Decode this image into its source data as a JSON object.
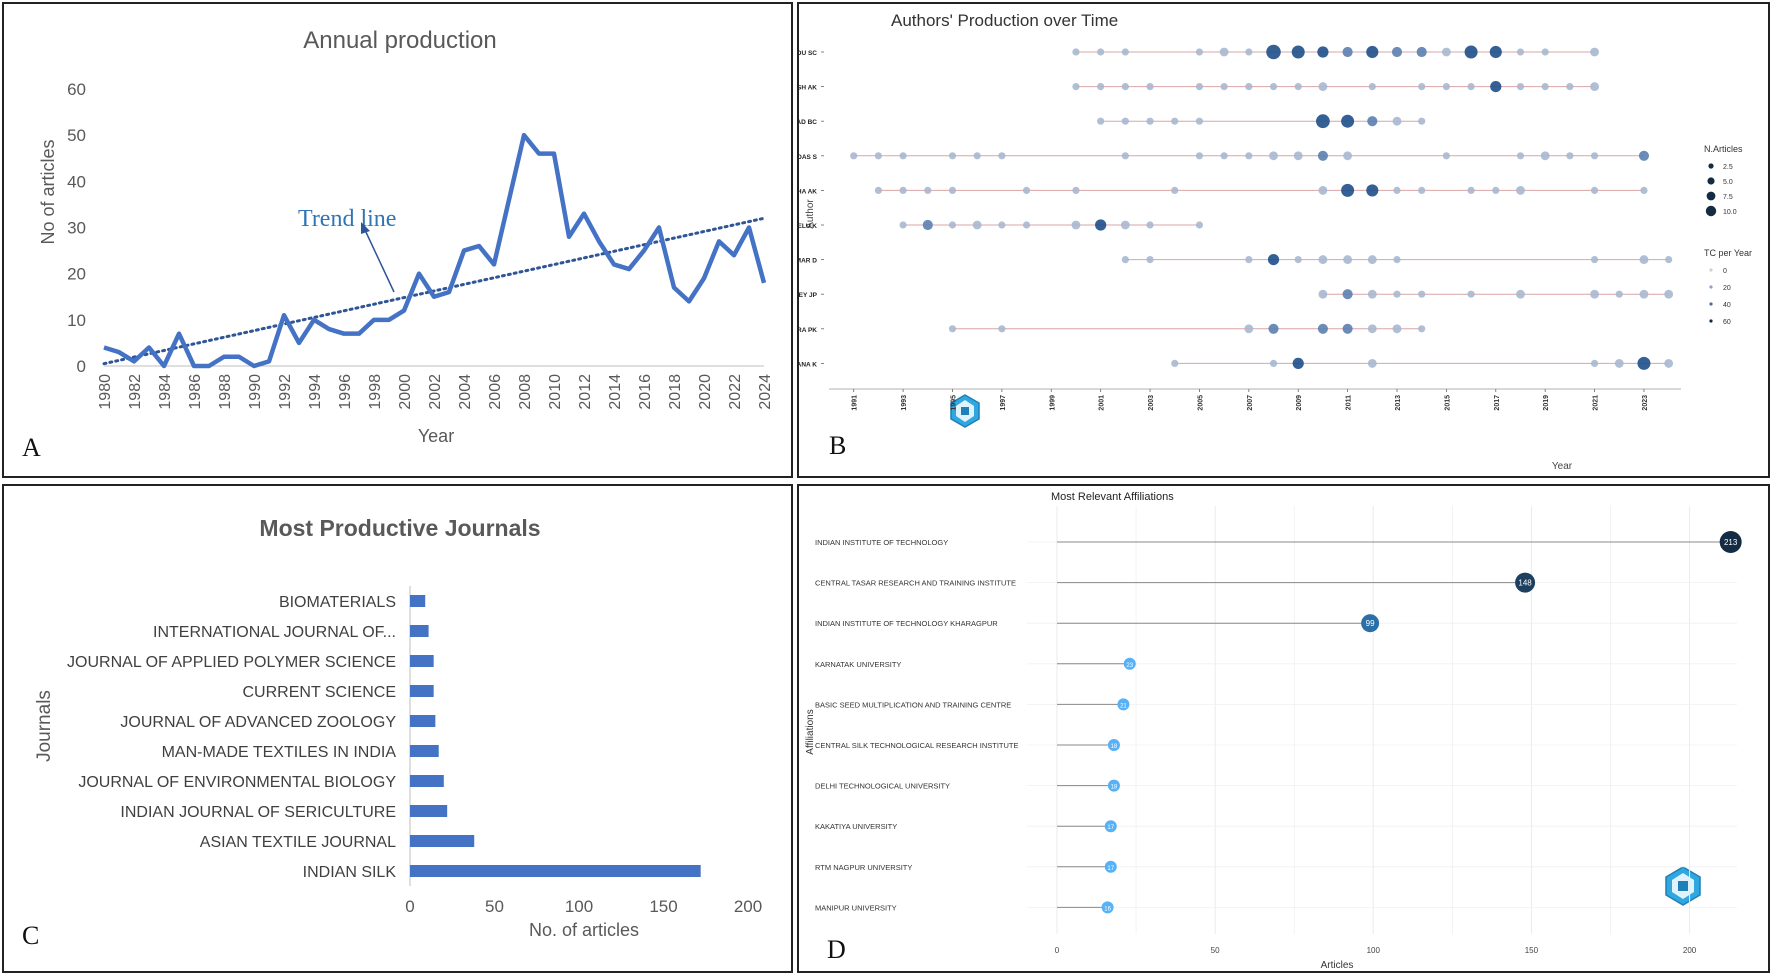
{
  "panel_letters": {
    "a": "A",
    "b": "B",
    "c": "C",
    "d": "D"
  },
  "colors": {
    "line_blue": "#4472C4",
    "dark_navy": "#132B43",
    "light_dot": "#56B1F7",
    "seg_red": "#D9A5A5"
  },
  "chart_data": [
    {
      "id": "annual",
      "type": "line",
      "title": "Annual production",
      "xlabel": "Year",
      "ylabel": "No of articles",
      "ylim": [
        0,
        60
      ],
      "yticks": [
        "0",
        "10",
        "20",
        "30",
        "40",
        "50",
        "60"
      ],
      "xticks": [
        "1980",
        "1982",
        "1984",
        "1986",
        "1988",
        "1990",
        "1992",
        "1994",
        "1996",
        "1998",
        "2000",
        "2002",
        "2004",
        "2006",
        "2008",
        "2010",
        "2012",
        "2014",
        "2016",
        "2018",
        "2020",
        "2022",
        "2024"
      ],
      "x": [
        1980,
        1981,
        1982,
        1983,
        1984,
        1985,
        1986,
        1987,
        1988,
        1989,
        1990,
        1991,
        1992,
        1993,
        1994,
        1995,
        1996,
        1997,
        1998,
        1999,
        2000,
        2001,
        2002,
        2003,
        2004,
        2005,
        2006,
        2007,
        2008,
        2009,
        2010,
        2011,
        2012,
        2013,
        2014,
        2015,
        2016,
        2017,
        2018,
        2019,
        2020,
        2021,
        2022,
        2023,
        2024
      ],
      "values": [
        4,
        3,
        1,
        4,
        0,
        7,
        0,
        0,
        2,
        2,
        0,
        1,
        11,
        5,
        10,
        8,
        7,
        7,
        10,
        10,
        12,
        20,
        15,
        16,
        25,
        26,
        22,
        36,
        50,
        46,
        46,
        28,
        33,
        27,
        22,
        21,
        25,
        30,
        17,
        14,
        19,
        27,
        24,
        30,
        18
      ],
      "trend": {
        "label": "Trend line",
        "start": [
          1980,
          0.5
        ],
        "end": [
          2024,
          32
        ]
      }
    },
    {
      "id": "authors",
      "type": "scatter",
      "title": "Authors' Production over Time",
      "xlabel": "Year",
      "ylabel": "Author",
      "xticks": [
        "1991",
        "1993",
        "1995",
        "1997",
        "1999",
        "2001",
        "2003",
        "2005",
        "2007",
        "2009",
        "2011",
        "2013",
        "2015",
        "2017",
        "2019",
        "2021",
        "2023"
      ],
      "authors": [
        "KUNDU SC",
        "GHOSH AK",
        "PRASAD BC",
        "DAS S",
        "SINHA AK",
        "THANGAVELU K",
        "KUMAR D",
        "PANDEY JP",
        "MISHRA PK",
        "SATHYANARAYANA K"
      ],
      "series": [
        {
          "name": "KUNDU SC",
          "span": [
            2000,
            2021
          ],
          "points": [
            [
              2000,
              1
            ],
            [
              2001,
              1
            ],
            [
              2002,
              1
            ],
            [
              2005,
              1
            ],
            [
              2006,
              2
            ],
            [
              2007,
              1
            ],
            [
              2008,
              8
            ],
            [
              2009,
              6
            ],
            [
              2010,
              4
            ],
            [
              2011,
              3
            ],
            [
              2012,
              5
            ],
            [
              2013,
              3
            ],
            [
              2014,
              3
            ],
            [
              2015,
              2
            ],
            [
              2016,
              6
            ],
            [
              2017,
              5
            ],
            [
              2018,
              1
            ],
            [
              2019,
              1
            ],
            [
              2021,
              2
            ]
          ]
        },
        {
          "name": "GHOSH AK",
          "span": [
            2000,
            2021
          ],
          "points": [
            [
              2000,
              1
            ],
            [
              2001,
              1
            ],
            [
              2002,
              1
            ],
            [
              2003,
              1
            ],
            [
              2005,
              1
            ],
            [
              2006,
              1
            ],
            [
              2007,
              1
            ],
            [
              2008,
              1
            ],
            [
              2009,
              1
            ],
            [
              2010,
              2
            ],
            [
              2012,
              1
            ],
            [
              2014,
              1
            ],
            [
              2015,
              1
            ],
            [
              2016,
              1
            ],
            [
              2017,
              4
            ],
            [
              2018,
              1
            ],
            [
              2019,
              1
            ],
            [
              2020,
              1
            ],
            [
              2021,
              2
            ]
          ]
        },
        {
          "name": "PRASAD BC",
          "span": [
            2001,
            2014
          ],
          "points": [
            [
              2001,
              1
            ],
            [
              2002,
              1
            ],
            [
              2003,
              1
            ],
            [
              2004,
              1
            ],
            [
              2005,
              1
            ],
            [
              2010,
              7
            ],
            [
              2011,
              6
            ],
            [
              2012,
              3
            ],
            [
              2013,
              2
            ],
            [
              2014,
              1
            ]
          ]
        },
        {
          "name": "DAS S",
          "span": [
            1991,
            2023
          ],
          "points": [
            [
              1991,
              1
            ],
            [
              1992,
              1
            ],
            [
              1993,
              1
            ],
            [
              1995,
              1
            ],
            [
              1996,
              1
            ],
            [
              1997,
              1
            ],
            [
              2002,
              1
            ],
            [
              2005,
              1
            ],
            [
              2006,
              1
            ],
            [
              2007,
              1
            ],
            [
              2008,
              2
            ],
            [
              2009,
              2
            ],
            [
              2010,
              3
            ],
            [
              2011,
              2
            ],
            [
              2015,
              1
            ],
            [
              2018,
              1
            ],
            [
              2019,
              2
            ],
            [
              2020,
              1
            ],
            [
              2021,
              1
            ],
            [
              2023,
              3
            ]
          ]
        },
        {
          "name": "SINHA AK",
          "span": [
            1992,
            2023
          ],
          "points": [
            [
              1992,
              1
            ],
            [
              1993,
              1
            ],
            [
              1994,
              1
            ],
            [
              1995,
              1
            ],
            [
              1998,
              1
            ],
            [
              2000,
              1
            ],
            [
              2004,
              1
            ],
            [
              2010,
              2
            ],
            [
              2011,
              6
            ],
            [
              2012,
              5
            ],
            [
              2013,
              1
            ],
            [
              2014,
              1
            ],
            [
              2016,
              1
            ],
            [
              2017,
              1
            ],
            [
              2018,
              2
            ],
            [
              2021,
              1
            ],
            [
              2023,
              1
            ]
          ]
        },
        {
          "name": "THANGAVELU K",
          "span": [
            1993,
            2005
          ],
          "points": [
            [
              1993,
              1
            ],
            [
              1994,
              3
            ],
            [
              1995,
              1
            ],
            [
              1996,
              2
            ],
            [
              1997,
              1
            ],
            [
              1998,
              1
            ],
            [
              2000,
              2
            ],
            [
              2001,
              4
            ],
            [
              2002,
              2
            ],
            [
              2003,
              1
            ],
            [
              2005,
              1
            ]
          ]
        },
        {
          "name": "KUMAR D",
          "span": [
            2002,
            2024
          ],
          "points": [
            [
              2002,
              1
            ],
            [
              2003,
              1
            ],
            [
              2007,
              1
            ],
            [
              2008,
              4
            ],
            [
              2009,
              1
            ],
            [
              2010,
              2
            ],
            [
              2011,
              2
            ],
            [
              2012,
              2
            ],
            [
              2013,
              1
            ],
            [
              2021,
              1
            ],
            [
              2023,
              2
            ],
            [
              2024,
              1
            ]
          ]
        },
        {
          "name": "PANDEY JP",
          "span": [
            2010,
            2024
          ],
          "points": [
            [
              2010,
              2
            ],
            [
              2011,
              3
            ],
            [
              2012,
              2
            ],
            [
              2013,
              1
            ],
            [
              2014,
              1
            ],
            [
              2016,
              1
            ],
            [
              2018,
              2
            ],
            [
              2021,
              2
            ],
            [
              2022,
              1
            ],
            [
              2023,
              2
            ],
            [
              2024,
              2
            ]
          ]
        },
        {
          "name": "MISHRA PK",
          "span": [
            1995,
            2014
          ],
          "points": [
            [
              1995,
              1
            ],
            [
              1997,
              1
            ],
            [
              2007,
              2
            ],
            [
              2008,
              3
            ],
            [
              2010,
              3
            ],
            [
              2011,
              3
            ],
            [
              2012,
              2
            ],
            [
              2013,
              2
            ],
            [
              2014,
              1
            ]
          ]
        },
        {
          "name": "SATHYANARAYANA K",
          "span": [
            2004,
            2024
          ],
          "points": [
            [
              2004,
              1
            ],
            [
              2008,
              1
            ],
            [
              2009,
              4
            ],
            [
              2012,
              2
            ],
            [
              2021,
              1
            ],
            [
              2022,
              2
            ],
            [
              2023,
              6
            ],
            [
              2024,
              2
            ]
          ]
        }
      ],
      "legend": {
        "size_title": "N.Articles",
        "size_labels": [
          "2.5",
          "5.0",
          "7.5",
          "10.0"
        ],
        "color_title": "TC per Year",
        "color_labels": [
          "0",
          "20",
          "40",
          "60"
        ]
      }
    },
    {
      "id": "journals",
      "type": "bar",
      "orientation": "horizontal",
      "title": "Most Productive Journals",
      "xlabel": "No. of articles",
      "ylabel": "Journals",
      "xlim": [
        0,
        200
      ],
      "xticks": [
        "0",
        "50",
        "100",
        "150",
        "200"
      ],
      "categories": [
        "BIOMATERIALS",
        "INTERNATIONAL JOURNAL OF...",
        "JOURNAL OF APPLIED POLYMER SCIENCE",
        "CURRENT SCIENCE",
        "JOURNAL OF ADVANCED ZOOLOGY",
        "MAN-MADE TEXTILES IN INDIA",
        "JOURNAL OF ENVIRONMENTAL BIOLOGY",
        "INDIAN JOURNAL OF SERICULTURE",
        "ASIAN TEXTILE JOURNAL",
        "INDIAN SILK"
      ],
      "values": [
        9,
        11,
        14,
        14,
        15,
        17,
        20,
        22,
        38,
        172
      ]
    },
    {
      "id": "affiliations",
      "type": "scatter",
      "subtype": "lollipop",
      "title": "Most Relevant Affiliations",
      "xlabel": "Articles",
      "ylabel": "Affiliations",
      "xlim": [
        0,
        215
      ],
      "xticks": [
        "0",
        "50",
        "100",
        "150",
        "200"
      ],
      "categories": [
        "INDIAN INSTITUTE OF TECHNOLOGY",
        "CENTRAL TASAR RESEARCH AND TRAINING INSTITUTE",
        "INDIAN INSTITUTE OF TECHNOLOGY KHARAGPUR",
        "KARNATAK UNIVERSITY",
        "BASIC SEED MULTIPLICATION AND TRAINING CENTRE",
        "CENTRAL SILK TECHNOLOGICAL RESEARCH INSTITUTE",
        "DELHI TECHNOLOGICAL UNIVERSITY",
        "KAKATIYA UNIVERSITY",
        "RTM NAGPUR UNIVERSITY",
        "MANIPUR UNIVERSITY"
      ],
      "values": [
        213,
        148,
        99,
        23,
        21,
        18,
        18,
        17,
        17,
        16
      ],
      "value_labels": [
        "213",
        "148",
        "99",
        "23",
        "21",
        "18",
        "18",
        "17",
        "17",
        "16"
      ]
    }
  ]
}
